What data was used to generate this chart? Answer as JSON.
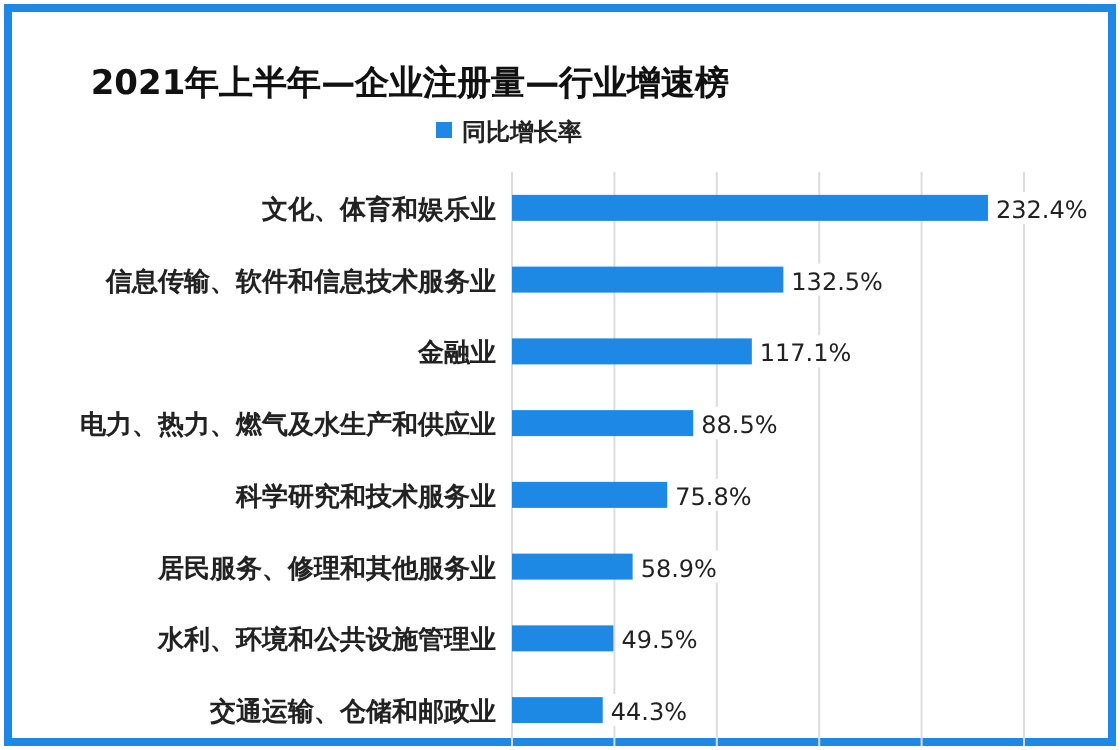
{
  "chart_data": {
    "type": "bar",
    "orientation": "horizontal",
    "title": "2021年上半年—企业注册量—行业增速榜",
    "categories": [
      "文化、体育和娱乐业",
      "信息传输、软件和信息技术服务业",
      "金融业",
      "电力、热力、燃气及水生产和供应业",
      "科学研究和技术服务业",
      "居民服务、修理和其他服务业",
      "水利、环境和公共设施管理业",
      "交通运输、仓储和邮政业"
    ],
    "series": [
      {
        "name": "同比增长率",
        "color": "#1e88e5",
        "values": [
          232.4,
          132.5,
          117.1,
          88.5,
          75.8,
          58.9,
          49.5,
          44.3
        ],
        "value_labels": [
          "232.4%",
          "132.5%",
          "117.1%",
          "88.5%",
          "75.8%",
          "58.9%",
          "49.5%",
          "44.3%"
        ]
      }
    ],
    "xlim": [
      0,
      250
    ],
    "xticks": [
      {
        "value": 0,
        "label": null
      },
      {
        "value": 50,
        "label": null
      },
      {
        "value": 100,
        "label": null
      },
      {
        "value": 150,
        "label": null
      },
      {
        "value": 200,
        "label": null
      },
      {
        "value": 250,
        "label": null
      }
    ],
    "grid": "x",
    "legend": "top",
    "tick_labels": "y"
  }
}
